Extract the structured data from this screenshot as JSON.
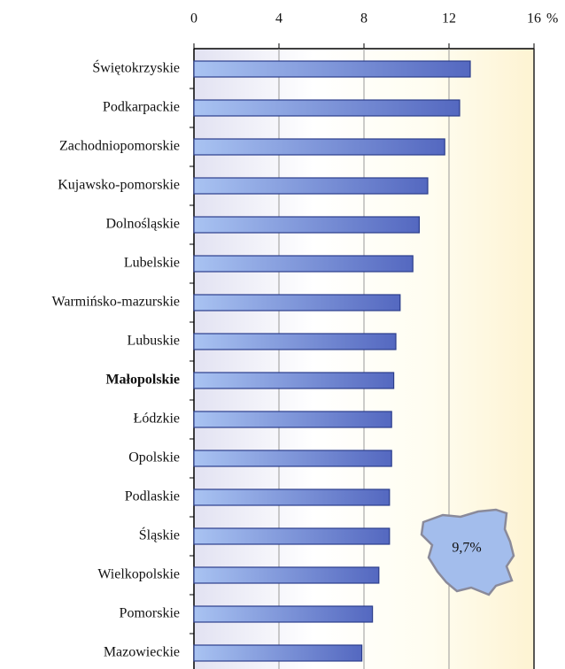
{
  "chart_data": {
    "type": "bar",
    "orientation": "horizontal",
    "categories": [
      "Świętokrzyskie",
      "Podkarpackie",
      "Zachodniopomorskie",
      "Kujawsko-pomorskie",
      "Dolnośląskie",
      "Lubelskie",
      "Warmińsko-mazurskie",
      "Lubuskie",
      "Małopolskie",
      "Łódzkie",
      "Opolskie",
      "Podlaskie",
      "Śląskie",
      "Wielkopolskie",
      "Pomorskie",
      "Mazowieckie"
    ],
    "values": [
      13.0,
      12.5,
      11.8,
      11.0,
      10.6,
      10.3,
      9.7,
      9.5,
      9.4,
      9.3,
      9.3,
      9.2,
      9.2,
      8.7,
      8.4,
      7.9
    ],
    "highlight": "Małopolskie",
    "xlim": [
      0,
      16
    ],
    "xticks": [
      0,
      4,
      8,
      12,
      16
    ],
    "x_unit": "%",
    "grid": true,
    "color": "#5a74c8",
    "annotation": "9,7%"
  }
}
